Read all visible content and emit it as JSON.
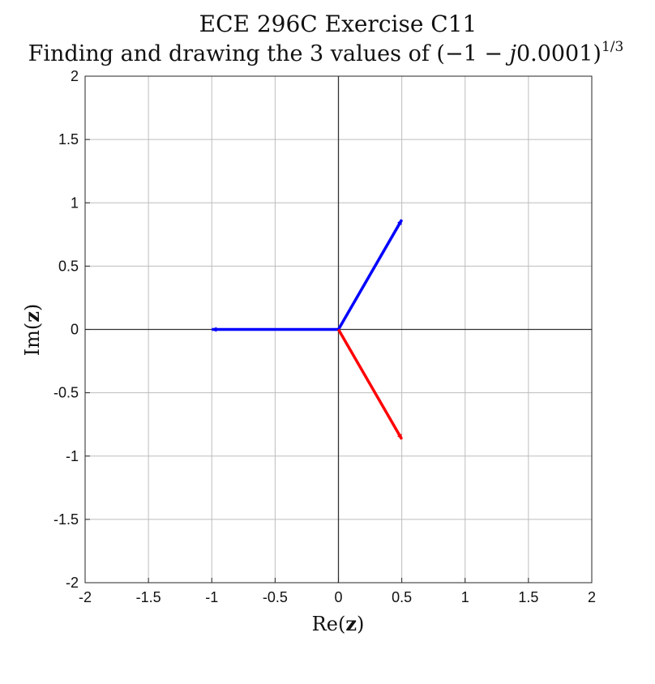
{
  "chart_data": {
    "type": "vector",
    "title_line1": "ECE 296C Exercise C11",
    "title_line2_prefix": "Finding and drawing the 3 values of (−1 − ",
    "title_line2_j": "j",
    "title_line2_mid": "0.0001)",
    "title_line2_exp": "1/3",
    "xlabel_pre": "Re(",
    "xlabel_bold": "z",
    "xlabel_post": ")",
    "ylabel_pre": "Im(",
    "ylabel_bold": "z",
    "ylabel_post": ")",
    "xlim": [
      -2,
      2
    ],
    "ylim": [
      -2,
      2
    ],
    "grid": true,
    "xticks": [
      "-2",
      "-1.5",
      "-1",
      "-0.5",
      "0",
      "0.5",
      "1",
      "1.5",
      "2"
    ],
    "yticks": [
      "2",
      "1.5",
      "1",
      "0.5",
      "0",
      "-0.5",
      "-1",
      "-1.5",
      "-2"
    ],
    "xtick_values": [
      -2,
      -1.5,
      -1,
      -0.5,
      0,
      0.5,
      1,
      1.5,
      2
    ],
    "ytick_values": [
      2,
      1.5,
      1,
      0.5,
      0,
      -0.5,
      -1,
      -1.5,
      -2
    ],
    "vectors": [
      {
        "x": 0.5,
        "y": 0.866,
        "color": "#0000ff"
      },
      {
        "x": -1.0,
        "y": 0.0,
        "color": "#0000ff"
      },
      {
        "x": 0.5,
        "y": -0.866,
        "color": "#ff0000"
      }
    ]
  }
}
